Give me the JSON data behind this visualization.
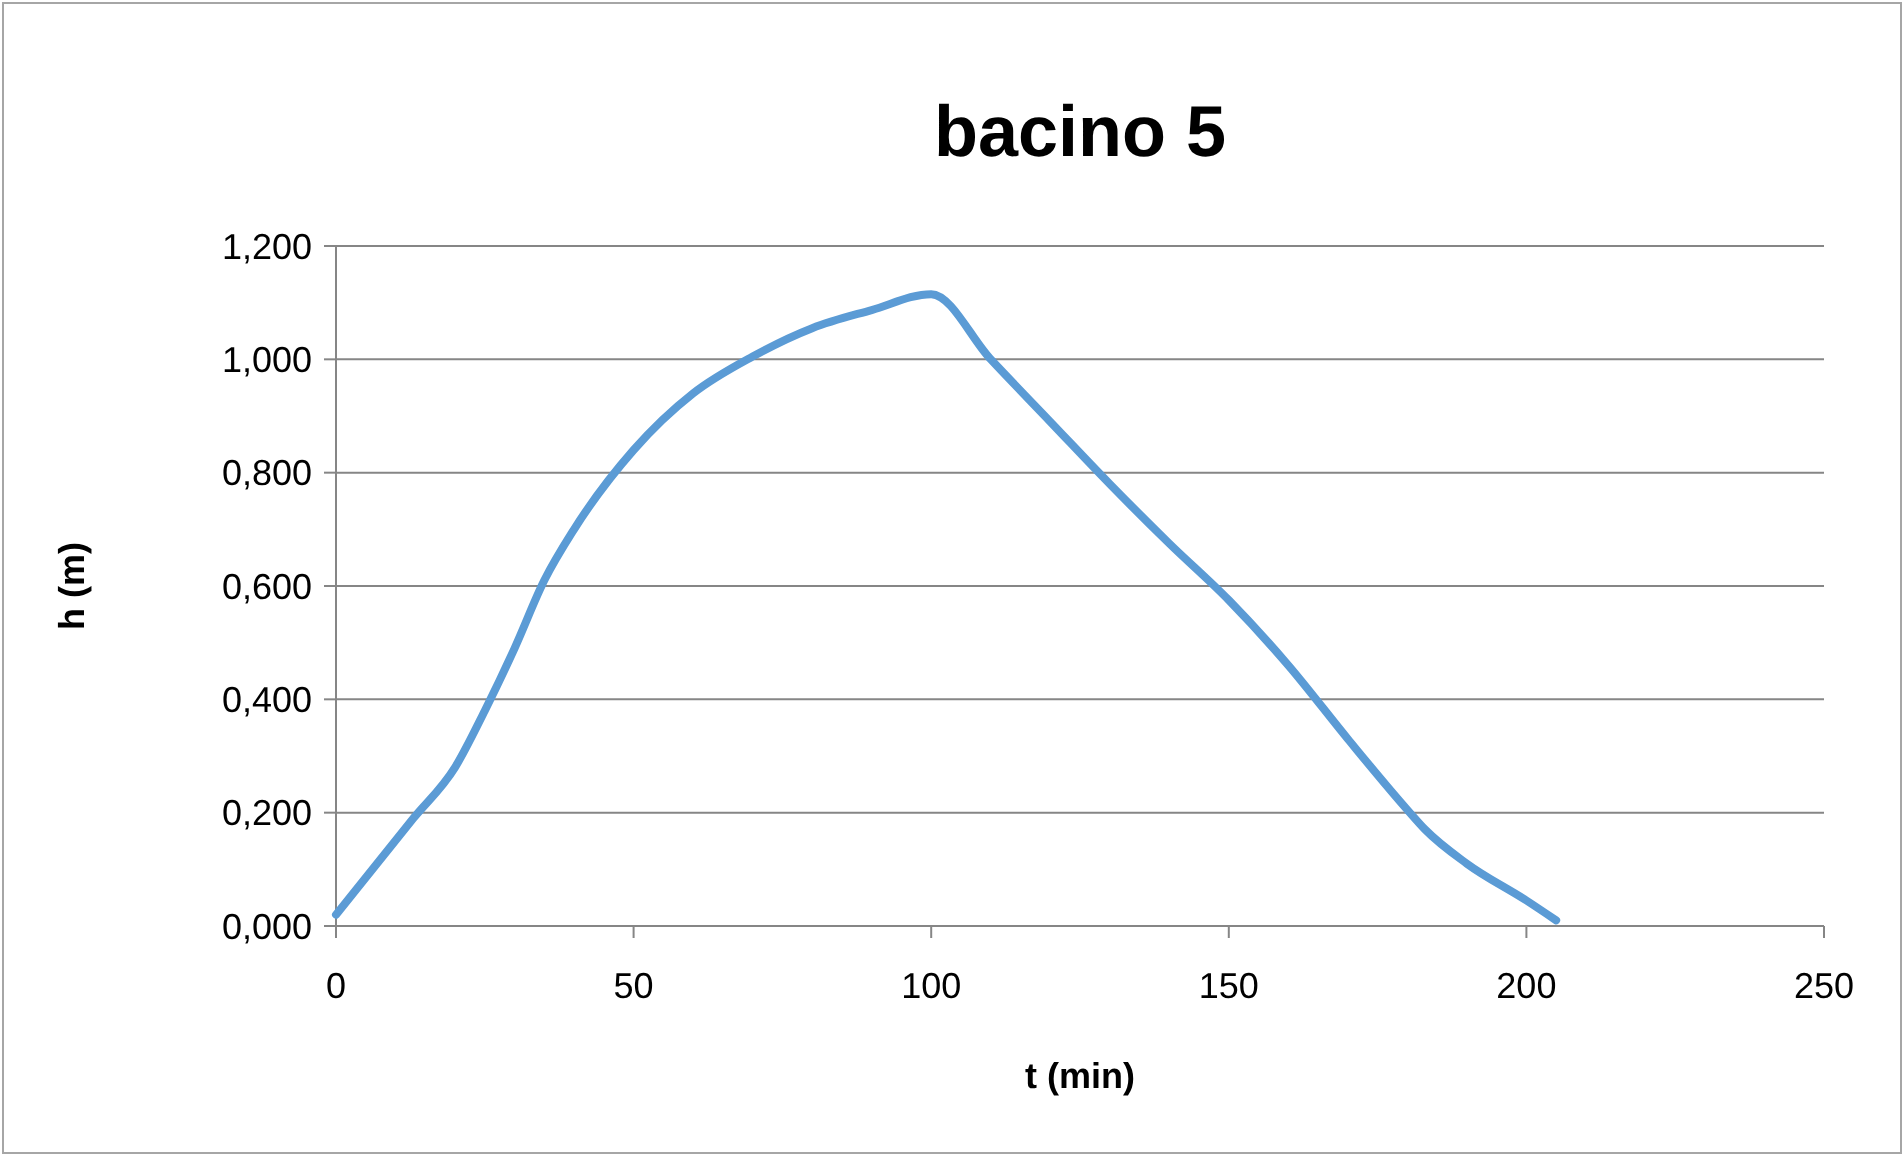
{
  "chart_data": {
    "type": "line",
    "title": "bacino 5",
    "xlabel": "t (min)",
    "ylabel": "h (m)",
    "x": [
      0,
      13,
      20,
      25,
      30,
      35,
      40,
      50,
      60,
      70,
      80,
      90,
      100,
      110,
      120,
      130,
      140,
      150,
      160,
      170,
      180,
      183,
      190,
      200,
      205
    ],
    "series": [
      {
        "color": "#5b9bd5",
        "values": [
          0.02,
          0.19,
          0.28,
          0.38,
          0.49,
          0.61,
          0.7,
          0.84,
          0.94,
          1.005,
          1.055,
          1.087,
          1.115,
          1.0,
          0.89,
          0.78,
          0.675,
          0.575,
          0.46,
          0.33,
          0.205,
          0.17,
          0.11,
          0.045,
          0.01
        ]
      }
    ],
    "xlim": [
      0,
      250
    ],
    "xticks": [
      0,
      50,
      100,
      150,
      200,
      250
    ],
    "ylim": [
      0,
      1.2
    ],
    "yticks": [
      {
        "value": 0,
        "label": "0,000"
      },
      {
        "value": 0.2,
        "label": "0,200"
      },
      {
        "value": 0.4,
        "label": "0,400"
      },
      {
        "value": 0.6,
        "label": "0,600"
      },
      {
        "value": 0.8,
        "label": "0,800"
      },
      {
        "value": 1,
        "label": "1,000"
      },
      {
        "value": 1.2,
        "label": "1,200"
      }
    ],
    "grid": "y",
    "marker": "none",
    "line_style": "solid"
  }
}
